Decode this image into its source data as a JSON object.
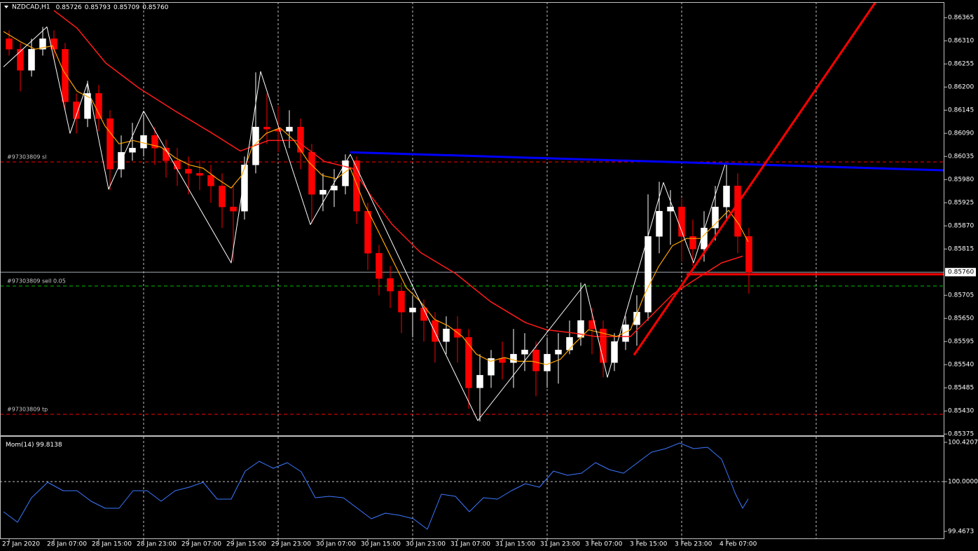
{
  "chart_data": [
    {
      "type": "candlestick",
      "title": "NZDCAD,H1",
      "ohlc": [
        0.85726,
        0.85793,
        0.85709,
        0.8576
      ],
      "ohlc_labels": [
        "0.85726",
        "0.85793",
        "0.85709",
        "0.85760"
      ],
      "xlim": [
        -1.625,
        166.875
      ],
      "xgrid": [
        24,
        48,
        72,
        96,
        120,
        144
      ],
      "ylim": [
        0.85372,
        0.86402
      ],
      "yticks": [
        0.86365,
        {
          "value": 0.8631,
          "label": "0.86310"
        },
        0.86255,
        {
          "value": 0.862,
          "label": "0.86200"
        },
        0.86145,
        {
          "value": 0.8609,
          "label": "0.86090"
        },
        0.86035,
        {
          "value": 0.8598,
          "label": "0.85980"
        },
        0.85925,
        {
          "value": 0.8587,
          "label": "0.85870"
        },
        0.85815,
        0.85705,
        {
          "value": 0.8565,
          "label": "0.85650"
        },
        0.85595,
        {
          "value": 0.8554,
          "label": "0.85540"
        },
        0.85485,
        {
          "value": 0.8543,
          "label": "0.85430"
        },
        0.85375
      ],
      "bid": {
        "value": 0.8576,
        "label": "0.85760"
      },
      "up_color": "#ffffff",
      "down_color": "#ff0000",
      "x": [
        0,
        2,
        4,
        6,
        8,
        10,
        12,
        14,
        16,
        18,
        20,
        22,
        24,
        26,
        28,
        30,
        32,
        34,
        36,
        38,
        40,
        42,
        44,
        46,
        48,
        50,
        52,
        54,
        56,
        58,
        60,
        62,
        64,
        66,
        68,
        70,
        72,
        74,
        76,
        78,
        80,
        82,
        84,
        86,
        88,
        90,
        92,
        94,
        96,
        98,
        100,
        102,
        104,
        106,
        108,
        110,
        112,
        114,
        116,
        118,
        120,
        122,
        124,
        126,
        128,
        130,
        132
      ],
      "open": [
        0.86315,
        0.8629,
        0.8624,
        0.8629,
        0.86315,
        0.8629,
        0.86165,
        0.86125,
        0.86185,
        0.86125,
        0.86005,
        0.86045,
        0.86055,
        0.86085,
        0.86055,
        0.86025,
        0.86005,
        0.85995,
        0.8599,
        0.85965,
        0.85915,
        0.85905,
        0.86015,
        0.86105,
        0.861,
        0.86095,
        0.86105,
        0.86045,
        0.85945,
        0.85955,
        0.85965,
        0.86025,
        0.85905,
        0.85805,
        0.85745,
        0.85715,
        0.85665,
        0.85675,
        0.85645,
        0.85595,
        0.85625,
        0.85605,
        0.85485,
        0.85515,
        0.85555,
        0.85545,
        0.85565,
        0.85575,
        0.85525,
        0.85565,
        0.85575,
        0.85605,
        0.85645,
        0.85625,
        0.85545,
        0.85595,
        0.85635,
        0.85665,
        0.85845,
        0.85905,
        0.85915,
        0.85845,
        0.85815,
        0.85865,
        0.85915,
        0.85965,
        0.85845
      ],
      "high": [
        0.86335,
        0.86305,
        0.86315,
        0.86343,
        0.86335,
        0.86305,
        0.86185,
        0.86215,
        0.86205,
        0.86145,
        0.86085,
        0.86115,
        0.86135,
        0.86105,
        0.86075,
        0.86055,
        0.86035,
        0.86025,
        0.86015,
        0.85995,
        0.85965,
        0.86035,
        0.86235,
        0.86185,
        0.86155,
        0.86145,
        0.86125,
        0.86065,
        0.85995,
        0.86005,
        0.8604,
        0.86035,
        0.85925,
        0.85825,
        0.85775,
        0.85735,
        0.85705,
        0.85695,
        0.85665,
        0.85655,
        0.85655,
        0.85625,
        0.85565,
        0.85575,
        0.85595,
        0.85625,
        0.85615,
        0.85595,
        0.85605,
        0.85615,
        0.85645,
        0.85735,
        0.85675,
        0.85645,
        0.85615,
        0.85655,
        0.85705,
        0.85945,
        0.85975,
        0.85955,
        0.85935,
        0.85885,
        0.85905,
        0.85965,
        0.86015,
        0.85995,
        0.85865
      ],
      "low": [
        0.86275,
        0.8619,
        0.86225,
        0.86275,
        0.86265,
        0.86145,
        0.8609,
        0.86105,
        0.86095,
        0.85955,
        0.85985,
        0.86025,
        0.86035,
        0.86015,
        0.85985,
        0.85965,
        0.85945,
        0.85955,
        0.85925,
        0.85865,
        0.85785,
        0.85885,
        0.85995,
        0.86065,
        0.86045,
        0.86055,
        0.86005,
        0.85875,
        0.85905,
        0.85915,
        0.85945,
        0.85875,
        0.85765,
        0.85705,
        0.85675,
        0.85615,
        0.85605,
        0.85595,
        0.85545,
        0.85565,
        0.85545,
        0.85435,
        0.85405,
        0.85485,
        0.85505,
        0.85485,
        0.85525,
        0.85465,
        0.85485,
        0.85495,
        0.85565,
        0.85585,
        0.85565,
        0.8551,
        0.85525,
        0.85575,
        0.85585,
        0.85645,
        0.85805,
        0.85825,
        0.85785,
        0.85775,
        0.85785,
        0.85835,
        0.85885,
        0.85805,
        0.85709
      ],
      "close": [
        0.8629,
        0.8624,
        0.8629,
        0.86315,
        0.8629,
        0.86165,
        0.86125,
        0.86185,
        0.86125,
        0.86005,
        0.86045,
        0.86055,
        0.86085,
        0.86055,
        0.86025,
        0.86005,
        0.85995,
        0.8599,
        0.85965,
        0.85915,
        0.85905,
        0.86015,
        0.86105,
        0.861,
        0.86095,
        0.86105,
        0.86045,
        0.85945,
        0.85955,
        0.85965,
        0.86025,
        0.85905,
        0.85805,
        0.85745,
        0.85715,
        0.85665,
        0.85675,
        0.85645,
        0.85595,
        0.85625,
        0.85605,
        0.85485,
        0.85515,
        0.85555,
        0.85545,
        0.85565,
        0.85575,
        0.85525,
        0.85565,
        0.85575,
        0.85605,
        0.85645,
        0.85625,
        0.85545,
        0.85595,
        0.85635,
        0.85665,
        0.85845,
        0.85905,
        0.85915,
        0.85845,
        0.85815,
        0.85865,
        0.85915,
        0.85965,
        0.85845,
        0.8576
      ],
      "series": [
        {
          "color": "#ff1a1a",
          "width": 1.5,
          "x": [
            8,
            12.125,
            17.25,
            23.125,
            30,
            36.25,
            41.25,
            46.25,
            51.25,
            56.25,
            61.25,
            64.625,
            68.375,
            73.375,
            79.625,
            85.875,
            92.125,
            95.875,
            100.875,
            104.625,
            110.875,
            114.625,
            118.375,
            122.125,
            127.125,
            130.875
          ],
          "values": [
            0.86382,
            0.8634,
            0.86257,
            0.86198,
            0.8614,
            0.8609,
            0.86048,
            0.86073,
            0.86073,
            0.86023,
            0.86007,
            0.8594,
            0.85873,
            0.85807,
            0.85757,
            0.8569,
            0.8564,
            0.85623,
            0.85615,
            0.85607,
            0.85607,
            0.85657,
            0.85707,
            0.8574,
            0.85782,
            0.85798
          ]
        },
        {
          "color": "#ffa500",
          "width": 1.2,
          "x": [
            -1,
            2.125,
            4.625,
            7.75,
            9.625,
            12.125,
            14.625,
            17.125,
            19.625,
            22.125,
            24.625,
            27.125,
            29.625,
            32.125,
            34.625,
            37.125,
            39.625,
            41.5,
            43.375,
            45.875,
            48.375,
            50.875,
            53.375,
            55.875,
            58.375,
            60.875,
            63.375,
            65.875,
            68.375,
            70.875,
            73.375,
            75.875,
            78.375,
            80.875,
            83.375,
            85.875,
            88.375,
            90.875,
            93.375,
            95.875,
            98.375,
            100.875,
            103.375,
            105.875,
            108.375,
            110.875,
            113.375,
            115.875,
            118.375,
            120.875,
            123.375,
            125.875,
            128.375,
            130.25,
            131.875
          ],
          "values": [
            0.86332,
            0.86307,
            0.8629,
            0.86298,
            0.8624,
            0.8619,
            0.86173,
            0.86107,
            0.86065,
            0.86073,
            0.86065,
            0.86057,
            0.86032,
            0.86015,
            0.86007,
            0.85982,
            0.8596,
            0.8599,
            0.86057,
            0.8609,
            0.86103,
            0.86073,
            0.86023,
            0.8599,
            0.85982,
            0.86007,
            0.85923,
            0.85857,
            0.8579,
            0.85723,
            0.8569,
            0.85648,
            0.85632,
            0.85607,
            0.85565,
            0.85548,
            0.85557,
            0.85548,
            0.85548,
            0.8554,
            0.85553,
            0.8559,
            0.85623,
            0.85615,
            0.85607,
            0.85623,
            0.85707,
            0.85773,
            0.85823,
            0.8584,
            0.8584,
            0.85873,
            0.85907,
            0.85873,
            0.85832
          ]
        },
        {
          "color": "#ffffff",
          "width": 1,
          "x": [
            -1,
            6.75,
            10.875,
            14,
            17.75,
            24,
            39.625,
            44.875,
            53.75,
            60.875,
            72.125,
            83.625,
            102.75,
            106.75,
            116.75,
            122.125,
            127.75
          ],
          "values": [
            0.86248,
            0.86343,
            0.8609,
            0.8621,
            0.85957,
            0.86143,
            0.85782,
            0.86237,
            0.85873,
            0.8604,
            0.85723,
            0.85407,
            0.85732,
            0.8551,
            0.85973,
            0.85782,
            0.86017
          ]
        }
      ],
      "trendlines": [
        {
          "color": "#0000ff",
          "width": 3,
          "x": [
            60.875,
            166.875
          ],
          "values": [
            0.86045,
            0.86002
          ]
        },
        {
          "color": "#ff0000",
          "width": 3,
          "x": [
            111.5,
            154.6
          ],
          "values": [
            0.85563,
            0.86402
          ]
        },
        {
          "color": "#ff0000",
          "width": 3,
          "x": [
            120.875,
            166.875
          ],
          "values": [
            0.85755,
            0.85755
          ]
        }
      ],
      "orders": [
        {
          "label": "#97303809 sl",
          "value": 0.86022,
          "color": "#ff0000"
        },
        {
          "label": "#97303809 sell 0.05",
          "value": 0.85727,
          "color": "#00c000"
        },
        {
          "label": "#97303809 tp",
          "value": 0.85422,
          "color": "#ff0000"
        }
      ]
    },
    {
      "type": "line",
      "label": "Mom(14)",
      "value": 99.8138,
      "color": "#3c78ff",
      "ylim": [
        99.3922,
        100.4808
      ],
      "yticks": [
        100.4207,
        {
          "value": 100,
          "label": "100.0000"
        },
        99.4673
      ],
      "levels": [
        100
      ],
      "xticks": [
        {
          "value": 0,
          "label": "27 Jan 2020"
        },
        {
          "value": 8,
          "label": "28 Jan 07:00"
        },
        {
          "value": 16,
          "label": "28 Jan 15:00"
        },
        {
          "value": 24,
          "label": "28 Jan 23:00"
        },
        {
          "value": 32,
          "label": "29 Jan 07:00"
        },
        {
          "value": 40,
          "label": "29 Jan 15:00"
        },
        {
          "value": 48,
          "label": "29 Jan 23:00"
        },
        {
          "value": 56,
          "label": "30 Jan 07:00"
        },
        {
          "value": 64,
          "label": "30 Jan 15:00"
        },
        {
          "value": 72,
          "label": "30 Jan 23:00"
        },
        {
          "value": 80,
          "label": "31 Jan 07:00"
        },
        {
          "value": 88,
          "label": "31 Jan 15:00"
        },
        {
          "value": 96,
          "label": "31 Jan 23:00"
        },
        {
          "value": 104,
          "label": "3 Feb 07:00"
        },
        {
          "value": 112,
          "label": "3 Feb 15:00"
        },
        {
          "value": 120,
          "label": "3 Feb 23:00"
        },
        {
          "value": 128,
          "label": "4 Feb 07:00"
        }
      ],
      "x": [
        -1,
        1.5,
        4,
        6.875,
        9.625,
        12.125,
        14.625,
        17.125,
        19.625,
        22.125,
        24.625,
        27.125,
        29.625,
        32.125,
        34.625,
        37.125,
        39.625,
        42.125,
        44.625,
        47.125,
        49.625,
        52.125,
        54.625,
        57.125,
        59.625,
        62.125,
        64.625,
        67.125,
        69.625,
        72.125,
        74.625,
        77.125,
        79.625,
        82.125,
        84.625,
        87.125,
        89.625,
        92.125,
        94.625,
        97.125,
        99.625,
        102.125,
        104.625,
        107.125,
        109.625,
        112.125,
        114.625,
        117.125,
        119.625,
        122.125,
        124.625,
        127.125,
        129.625,
        130.875,
        131.875
      ],
      "values": [
        99.6775,
        99.5648,
        99.8276,
        99.9928,
        99.9027,
        99.9027,
        99.7901,
        99.715,
        99.715,
        99.9027,
        99.9027,
        99.7901,
        99.9027,
        99.9402,
        99.9928,
        99.8126,
        99.8126,
        100.1129,
        100.218,
        100.1429,
        100.203,
        100.1054,
        99.8276,
        99.8426,
        99.8276,
        99.715,
        99.6024,
        99.6624,
        99.6399,
        99.6024,
        99.4898,
        99.8651,
        99.8426,
        99.6775,
        99.8276,
        99.8126,
        99.9027,
        99.9778,
        99.9402,
        100.1129,
        100.0678,
        100.0904,
        100.203,
        100.1279,
        100.0904,
        100.203,
        100.3156,
        100.3531,
        100.4132,
        100.3531,
        100.3681,
        100.2405,
        99.8651,
        99.715,
        99.8138
      ]
    }
  ]
}
